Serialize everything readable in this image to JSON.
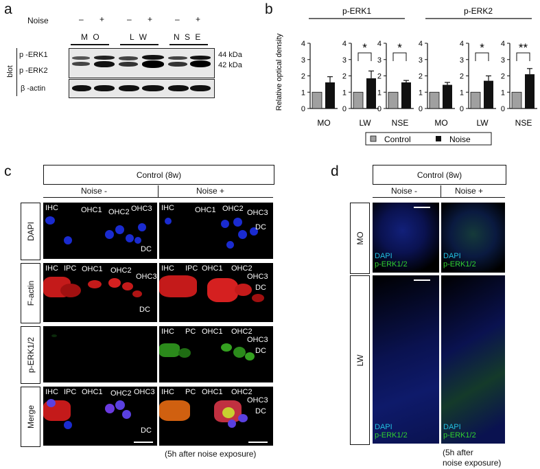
{
  "a": {
    "label": "a",
    "noise_label": "Noise",
    "noise_signs": [
      "–",
      "+",
      "–",
      "+",
      "–",
      "+"
    ],
    "groups": [
      "M O",
      "L W",
      "N S E"
    ],
    "side_label": "blot",
    "row1_labels": [
      "p -ERK1",
      "p -ERK2"
    ],
    "kda": [
      "44 kDa",
      "42 kDa"
    ],
    "row2_label": "β -actin"
  },
  "b": {
    "label": "b",
    "ylabel": "Relative optical density",
    "group_headers": [
      "p-ERK1",
      "p-ERK2"
    ],
    "legend": [
      {
        "name": "Control",
        "color": "#a0a0a0"
      },
      {
        "name": "Noise",
        "color": "#111111"
      }
    ],
    "chart_data": {
      "type": "bar",
      "ylim": [
        0,
        4
      ],
      "yticks": [
        0,
        1,
        2,
        3,
        4
      ],
      "panels": [
        {
          "group": "p-ERK1",
          "category": "MO",
          "control": 1.0,
          "noise": 1.6,
          "noise_err": 0.35,
          "sig": ""
        },
        {
          "group": "p-ERK1",
          "category": "LW",
          "control": 1.0,
          "noise": 1.85,
          "noise_err": 0.45,
          "sig": "*"
        },
        {
          "group": "p-ERK1",
          "category": "NSE",
          "control": 1.0,
          "noise": 1.6,
          "noise_err": 0.12,
          "sig": "*"
        },
        {
          "group": "p-ERK2",
          "category": "MO",
          "control": 1.0,
          "noise": 1.45,
          "noise_err": 0.15,
          "sig": ""
        },
        {
          "group": "p-ERK2",
          "category": "LW",
          "control": 1.0,
          "noise": 1.7,
          "noise_err": 0.3,
          "sig": "*"
        },
        {
          "group": "p-ERK2",
          "category": "NSE",
          "control": 1.0,
          "noise": 2.1,
          "noise_err": 0.35,
          "sig": "**"
        }
      ]
    }
  },
  "c": {
    "label": "c",
    "header": "Control (8w)",
    "col_labels": [
      "Noise  -",
      "Noise  +"
    ],
    "row_labels": [
      "DAPI",
      "F-actin",
      "p-ERK1/2",
      "Merge"
    ],
    "cell_labels": {
      "dapi_left": [
        "IHC",
        "OHC1",
        "OHC2",
        "OHC3",
        "DC"
      ],
      "dapi_right": [
        "IHC",
        "OHC1",
        "OHC2",
        "OHC3",
        "DC"
      ],
      "factin_left": [
        "IHC",
        "IPC",
        "OHC1",
        "OHC2",
        "OHC3",
        "DC"
      ],
      "factin_right": [
        "IHC",
        "IPC",
        "OHC1",
        "OHC2",
        "OHC3",
        "DC"
      ],
      "perk_right": [
        "IHC",
        "PC",
        "OHC1",
        "OHC2",
        "OHC3",
        "DC"
      ],
      "merge_left": [
        "IHC",
        "IPC",
        "OHC1",
        "OHC2",
        "OHC3",
        "DC"
      ],
      "merge_right": [
        "IHC",
        "PC",
        "OHC1",
        "OHC2",
        "OHC3",
        "DC"
      ]
    },
    "footer": "(5h after noise exposure)"
  },
  "d": {
    "label": "d",
    "header": "Control (8w)",
    "col_labels": [
      "Noise  -",
      "Noise  +"
    ],
    "row_labels": [
      "MO",
      "LW"
    ],
    "stain_labels": [
      "DAPI",
      "p-ERK1/2"
    ],
    "footer_lines": [
      "(5h after",
      "noise exposure)"
    ]
  }
}
